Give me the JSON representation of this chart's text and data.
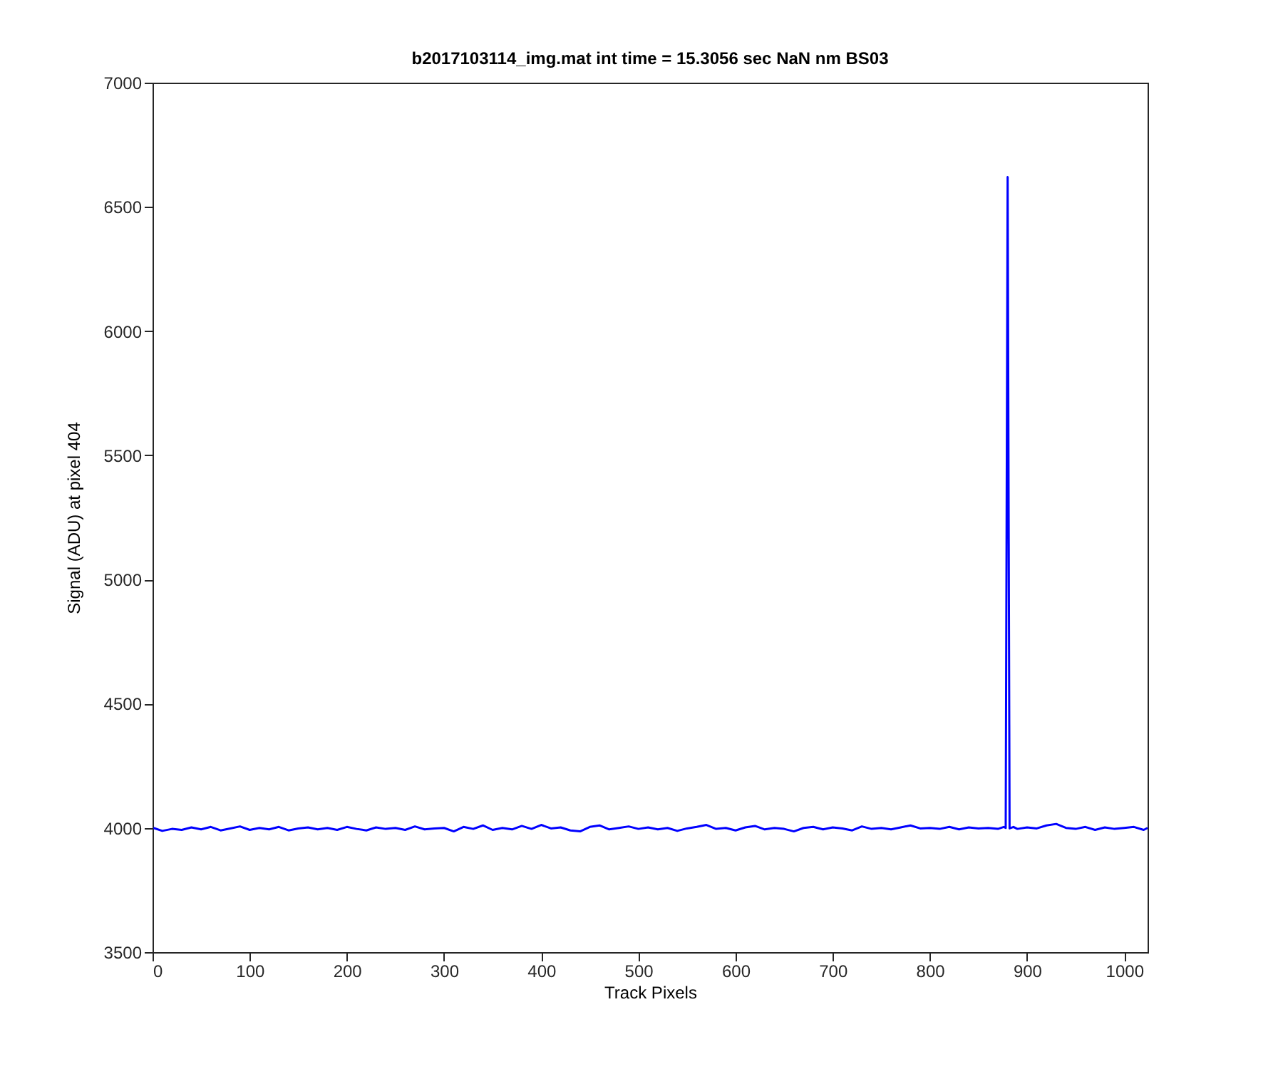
{
  "chart_data": {
    "type": "line",
    "title": "b2017103114_img.mat int time = 15.3056 sec  NaN nm BS03",
    "xlabel": "Track Pixels",
    "ylabel": "Signal (ADU) at pixel 404",
    "x": [
      1,
      10,
      20,
      30,
      40,
      50,
      60,
      70,
      80,
      90,
      100,
      110,
      120,
      130,
      140,
      150,
      160,
      170,
      180,
      190,
      200,
      210,
      220,
      230,
      240,
      250,
      260,
      270,
      280,
      290,
      300,
      310,
      320,
      330,
      340,
      350,
      360,
      370,
      380,
      390,
      400,
      410,
      420,
      430,
      440,
      450,
      460,
      470,
      480,
      490,
      500,
      510,
      520,
      530,
      540,
      550,
      560,
      570,
      580,
      590,
      600,
      610,
      620,
      630,
      640,
      650,
      660,
      670,
      680,
      690,
      700,
      710,
      720,
      730,
      740,
      750,
      760,
      770,
      780,
      790,
      800,
      810,
      820,
      830,
      840,
      850,
      860,
      870,
      876,
      878,
      880,
      882,
      886,
      890,
      900,
      910,
      920,
      930,
      940,
      950,
      960,
      970,
      980,
      990,
      1000,
      1010,
      1020,
      1024
    ],
    "series": [
      {
        "color": "#0000ff",
        "values": [
          4000,
          3988,
          3996,
          3992,
          4002,
          3994,
          4004,
          3990,
          3998,
          4006,
          3992,
          4000,
          3994,
          4004,
          3990,
          3998,
          4002,
          3994,
          4000,
          3992,
          4004,
          3996,
          3990,
          4002,
          3996,
          4000,
          3992,
          4006,
          3994,
          3998,
          4000,
          3986,
          4004,
          3996,
          4010,
          3992,
          4000,
          3994,
          4008,
          3996,
          4012,
          3998,
          4002,
          3990,
          3986,
          4004,
          4010,
          3994,
          4000,
          4006,
          3996,
          4002,
          3994,
          4000,
          3988,
          3998,
          4004,
          4012,
          3996,
          4000,
          3990,
          4002,
          4008,
          3994,
          4000,
          3996,
          3986,
          4000,
          4004,
          3994,
          4002,
          3998,
          3990,
          4006,
          3996,
          4000,
          3994,
          4002,
          4010,
          3998,
          4000,
          3996,
          4004,
          3994,
          4002,
          3998,
          4000,
          3996,
          4004,
          4000,
          6620,
          3998,
          4004,
          3996,
          4002,
          3998,
          4010,
          4016,
          4000,
          3996,
          4004,
          3992,
          4002,
          3996,
          4000,
          4004,
          3992,
          4000
        ]
      }
    ],
    "xlim": [
      0,
      1024
    ],
    "xticks": [
      0,
      100,
      200,
      300,
      400,
      500,
      600,
      700,
      800,
      900,
      1000
    ],
    "ylim": [
      3500,
      7000
    ],
    "yticks": [
      3500,
      4000,
      4500,
      5000,
      5500,
      6000,
      6500,
      7000
    ],
    "grid": false,
    "marker": "none",
    "line_style": "solid"
  }
}
